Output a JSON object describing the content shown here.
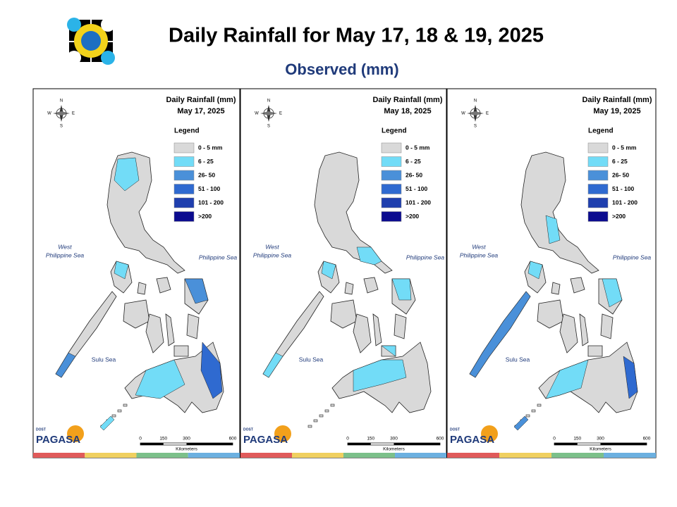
{
  "header": {
    "title": "Daily Rainfall for May 17, 18 & 19, 2025",
    "subtitle": "Observed (mm)"
  },
  "panels": [
    {
      "title": "Daily Rainfall (mm)",
      "date": "May 17, 2025"
    },
    {
      "title": "Daily Rainfall (mm)",
      "date": "May 18, 2025"
    },
    {
      "title": "Daily Rainfall (mm)",
      "date": "May 19, 2025"
    }
  ],
  "legend": {
    "title": "Legend",
    "items": [
      {
        "label": "0 - 5 mm",
        "color": "#d9d9d9"
      },
      {
        "label": "6 - 25",
        "color": "#72dcf7"
      },
      {
        "label": "26- 50",
        "color": "#4a90d9"
      },
      {
        "label": "51 - 100",
        "color": "#2f6ad0"
      },
      {
        "label": "101 - 200",
        "color": "#1f3fae"
      },
      {
        "label": ">200",
        "color": "#0b0b8f"
      }
    ]
  },
  "compass": {
    "n": "N",
    "s": "S",
    "e": "E",
    "w": "W"
  },
  "seas": {
    "west": [
      "West",
      "Philippine Sea"
    ],
    "east": "Philippine Sea",
    "sulu": "Sulu Sea"
  },
  "scale": {
    "ticks": [
      0,
      150,
      300,
      600
    ],
    "unit": "Kilometers"
  },
  "logo": {
    "agency": "DOST",
    "name": "PAGASA"
  }
}
